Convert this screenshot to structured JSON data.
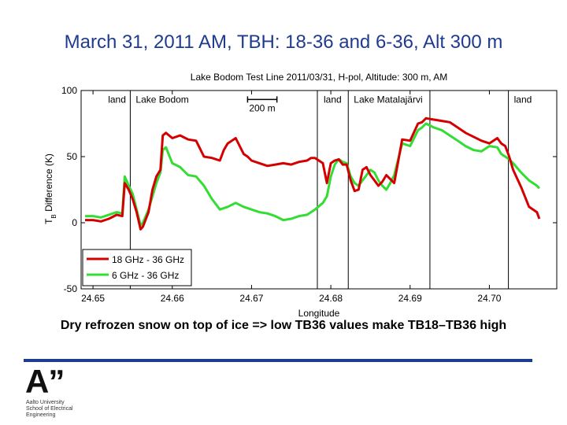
{
  "slide": {
    "title": "March 31, 2011 AM, TBH: 18-36 and 6-36, Alt 300 m",
    "caption": "Dry refrozen snow on top of ice => low TB36 values make TB18–TB36 high",
    "logo": {
      "mark": "A”",
      "lines": [
        "Aalto University",
        "School of Electrical",
        "Engineering"
      ]
    }
  },
  "colors": {
    "title": "#1f3b8f",
    "series_18": "#d40000",
    "series_6": "#33dd33",
    "bar": "#1f3b8f"
  },
  "chart_data": {
    "type": "line",
    "title": "Lake Bodom Test Line 2011/03/31, H-pol, Altitude: 300 m, AM",
    "xlabel": "Longitude",
    "ylabel": "T",
    "ylabel_sub": "B",
    "ylabel_rest": " Difference (K)",
    "xlim": [
      24.6485,
      24.7085
    ],
    "ylim": [
      -50,
      100
    ],
    "xticks": [
      24.65,
      24.66,
      24.67,
      24.68,
      24.69,
      24.7
    ],
    "xtick_labels": [
      "24.65",
      "24.66",
      "24.67",
      "24.68",
      "24.69",
      "24.70"
    ],
    "yticks": [
      -50,
      0,
      50,
      100
    ],
    "ytick_labels": [
      "-50",
      "0",
      "50",
      "100"
    ],
    "grid": false,
    "legend_position": "bottom-left",
    "vlines": [
      24.6547,
      24.6783,
      24.6822,
      24.6925,
      24.7024
    ],
    "region_labels": [
      {
        "text": "land",
        "x": 24.6515
      },
      {
        "text": "Lake Bodom",
        "x": 24.655
      },
      {
        "text": "land",
        "x": 24.6787
      },
      {
        "text": "Lake Matalajärvi",
        "x": 24.6825
      },
      {
        "text": "land",
        "x": 24.7027
      }
    ],
    "scalebar": {
      "label": "200 m",
      "x0": 24.6695,
      "x1": 24.6732,
      "y": 95
    },
    "series": [
      {
        "name": "18 GHz - 36 GHz",
        "color": "#d40000",
        "x": [
          24.649,
          24.65,
          24.651,
          24.652,
          24.653,
          24.6537,
          24.654,
          24.6545,
          24.655,
          24.6555,
          24.656,
          24.6563,
          24.657,
          24.6575,
          24.658,
          24.6585,
          24.6588,
          24.6592,
          24.66,
          24.661,
          24.662,
          24.663,
          24.664,
          24.665,
          24.666,
          24.6665,
          24.667,
          24.668,
          24.669,
          24.6695,
          24.67,
          24.671,
          24.672,
          24.673,
          24.674,
          24.675,
          24.676,
          24.677,
          24.6775,
          24.678,
          24.679,
          24.6795,
          24.68,
          24.6805,
          24.681,
          24.6815,
          24.682,
          24.6825,
          24.683,
          24.6835,
          24.684,
          24.6845,
          24.685,
          24.6855,
          24.686,
          24.6865,
          24.687,
          24.6875,
          24.688,
          24.689,
          24.69,
          24.691,
          24.6915,
          24.692,
          24.693,
          24.694,
          24.695,
          24.696,
          24.697,
          24.698,
          24.699,
          24.7,
          24.701,
          24.7015,
          24.702,
          24.7025,
          24.703,
          24.704,
          24.705,
          24.706,
          24.7063
        ],
        "y": [
          2,
          2,
          1,
          3,
          6,
          5,
          30,
          25,
          18,
          8,
          -5,
          -3,
          8,
          25,
          35,
          40,
          66,
          68,
          64,
          66,
          63,
          62,
          50,
          49,
          47,
          55,
          60,
          64,
          52,
          50,
          47,
          45,
          43,
          44,
          45,
          44,
          46,
          47,
          49,
          49,
          45,
          30,
          45,
          47,
          48,
          44,
          44,
          32,
          24,
          25,
          40,
          42,
          36,
          32,
          28,
          31,
          36,
          33,
          30,
          63,
          62,
          75,
          76,
          79,
          78,
          77,
          76,
          72,
          68,
          65,
          62,
          60,
          64,
          60,
          58,
          50,
          40,
          27,
          12,
          8,
          3
        ]
      },
      {
        "name": "6 GHz - 36 GHz",
        "color": "#33dd33",
        "x": [
          24.649,
          24.65,
          24.651,
          24.652,
          24.653,
          24.6537,
          24.654,
          24.6545,
          24.655,
          24.6555,
          24.656,
          24.6563,
          24.657,
          24.6575,
          24.658,
          24.6585,
          24.6588,
          24.6592,
          24.66,
          24.661,
          24.662,
          24.663,
          24.664,
          24.665,
          24.666,
          24.667,
          24.668,
          24.669,
          24.67,
          24.671,
          24.672,
          24.673,
          24.674,
          24.675,
          24.676,
          24.677,
          24.6775,
          24.678,
          24.679,
          24.6795,
          24.68,
          24.6805,
          24.681,
          24.6815,
          24.682,
          24.6825,
          24.683,
          24.6835,
          24.684,
          24.6845,
          24.685,
          24.6855,
          24.686,
          24.6865,
          24.687,
          24.6875,
          24.688,
          24.689,
          24.69,
          24.691,
          24.6915,
          24.692,
          24.693,
          24.694,
          24.695,
          24.696,
          24.697,
          24.698,
          24.699,
          24.7,
          24.701,
          24.7015,
          24.702,
          24.7025,
          24.703,
          24.704,
          24.705,
          24.706,
          24.7063
        ],
        "y": [
          5,
          5,
          4,
          6,
          8,
          7,
          35,
          28,
          22,
          10,
          -2,
          0,
          10,
          20,
          30,
          38,
          55,
          57,
          45,
          42,
          36,
          35,
          28,
          18,
          10,
          12,
          15,
          12,
          10,
          8,
          7,
          5,
          2,
          3,
          5,
          6,
          8,
          10,
          15,
          20,
          35,
          44,
          48,
          46,
          45,
          35,
          30,
          28,
          32,
          36,
          40,
          38,
          32,
          28,
          25,
          30,
          36,
          60,
          58,
          70,
          72,
          75,
          72,
          70,
          66,
          62,
          58,
          55,
          54,
          58,
          57,
          52,
          50,
          48,
          45,
          38,
          32,
          28,
          26
        ]
      }
    ]
  }
}
